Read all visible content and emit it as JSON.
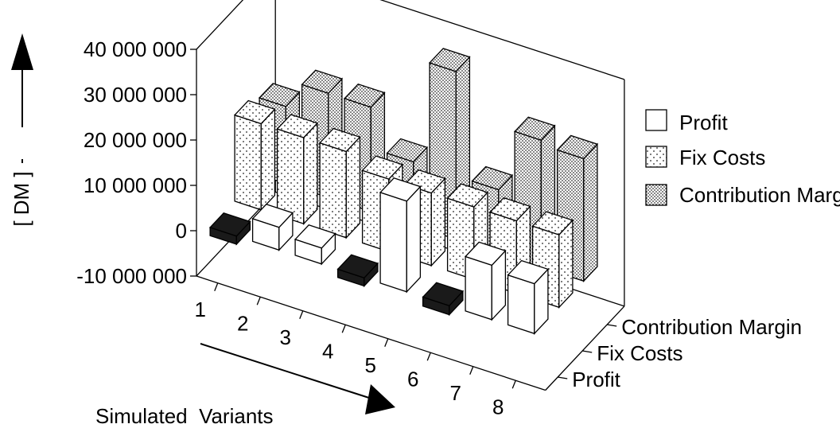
{
  "chart_data": {
    "type": "bar",
    "subtype": "3d-grouped-bar",
    "title": "",
    "xlabel": "Simulated  Variants",
    "ylabel": "[ DM ]",
    "ylim": [
      -10000000,
      40000000
    ],
    "y_ticks": [
      -10000000,
      0,
      10000000,
      20000000,
      30000000,
      40000000
    ],
    "y_tick_labels": [
      "-10 000 000",
      "0",
      "10 000 000",
      "20 000 000",
      "30 000 000",
      "40 000 000"
    ],
    "categories": [
      "1",
      "2",
      "3",
      "4",
      "5",
      "6",
      "7",
      "8"
    ],
    "depth_labels": [
      "Profit",
      "Fix Costs",
      "Contribution Margin"
    ],
    "legend_position": "right",
    "legend": [
      "Profit",
      "Fix Costs",
      "Contribution Margin"
    ],
    "series": [
      {
        "name": "Profit",
        "values": [
          -1800000,
          5000000,
          3500000,
          -1800000,
          20000000,
          -2000000,
          12000000,
          11000000
        ]
      },
      {
        "name": "Fix Costs",
        "values": [
          19000000,
          19000000,
          19000000,
          16000000,
          16000000,
          16000000,
          16000000,
          16000000
        ]
      },
      {
        "name": "Contribution Margin",
        "values": [
          17000000,
          23000000,
          23000000,
          14000000,
          37000000,
          14000000,
          28000000,
          27000000
        ]
      }
    ],
    "colors": {
      "Profit": "#ffffff",
      "Fix Costs": "#f3f3f3",
      "Contribution Margin": "#c8c8c8",
      "Negative": "#1a1a1a"
    },
    "grid": false
  }
}
